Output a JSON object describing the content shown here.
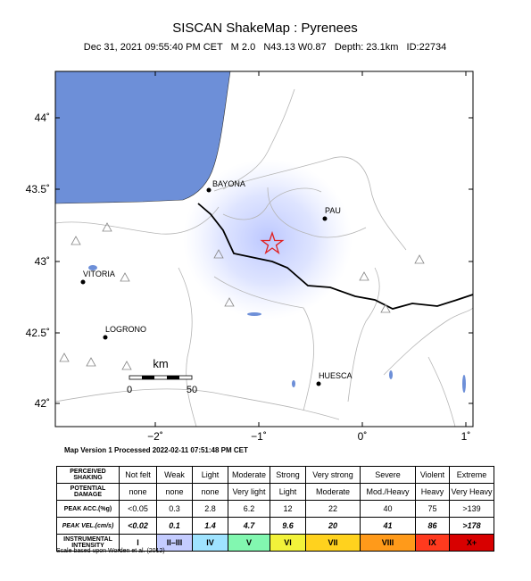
{
  "header": {
    "title": "SISCAN ShakeMap : Pyrenees",
    "subtitle": "Dec 31, 2021 09:55:40 PM CET   M 2.0   N43.13 W0.87   Depth: 23.1km   ID:22734"
  },
  "map": {
    "lat_labels": [
      "44˚",
      "43.5˚",
      "43˚",
      "42.5˚",
      "42˚"
    ],
    "lon_labels": [
      "−2˚",
      "−1˚",
      "0˚",
      "1˚"
    ],
    "cities": [
      "BAYONA",
      "PAU",
      "VITORIA",
      "LOGRONO",
      "HUESCA"
    ],
    "scale": {
      "unit": "km",
      "labels": [
        "0",
        "50"
      ]
    },
    "footnote": "Map Version 1 Processed 2022-02-11 07:51:48 PM CET"
  },
  "table": {
    "rows": [
      [
        "PERCEIVED SHAKING",
        "Not felt",
        "Weak",
        "Light",
        "Moderate",
        "Strong",
        "Very strong",
        "Severe",
        "Violent",
        "Extreme"
      ],
      [
        "POTENTIAL DAMAGE",
        "none",
        "none",
        "none",
        "Very light",
        "Light",
        "Moderate",
        "Mod./Heavy",
        "Heavy",
        "Very Heavy"
      ],
      [
        "PEAK ACC.(%g)",
        "<0.05",
        "0.3",
        "2.8",
        "6.2",
        "12",
        "22",
        "40",
        "75",
        ">139"
      ],
      [
        "PEAK VEL.(cm/s)",
        "<0.02",
        "0.1",
        "1.4",
        "4.7",
        "9.6",
        "20",
        "41",
        "86",
        ">178"
      ],
      [
        "INSTRUMENTAL INTENSITY",
        "I",
        "II–III",
        "IV",
        "V",
        "VI",
        "VII",
        "VIII",
        "IX",
        "X+"
      ]
    ],
    "colors": [
      "#ffffff",
      "#c4ccff",
      "#9fe3ff",
      "#82f7b0",
      "#f2f23a",
      "#ffd21e",
      "#ff9a1a",
      "#ff3a1e",
      "#d80000"
    ]
  },
  "credit": "Scale based upon Worden et al. (2012)"
}
